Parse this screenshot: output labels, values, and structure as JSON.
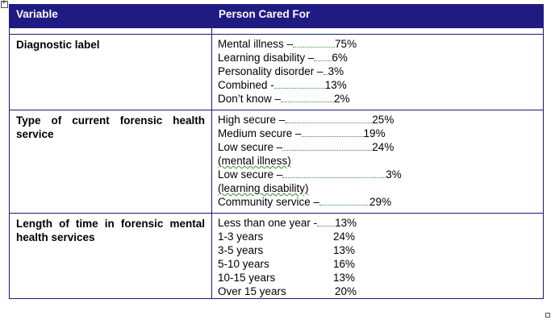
{
  "header": {
    "variable": "Variable",
    "person": "Person Cared For"
  },
  "rows": [
    {
      "variable": "Diagnostic label",
      "items": [
        {
          "label": "Mental illness –",
          "value": "75%"
        },
        {
          "label": "Learning disability –",
          "value": "6%"
        },
        {
          "label": "Personality disorder –",
          "value": "3%"
        },
        {
          "label": "Combined  -",
          "value": "13%"
        },
        {
          "label": "Don’t know –",
          "value": "2%"
        }
      ]
    },
    {
      "variable": "Type of current forensic health service",
      "items": [
        {
          "label": "High secure –",
          "value": "25%"
        },
        {
          "label": "Medium secure –",
          "value": "19%"
        },
        {
          "label": "Low secure –",
          "value": "24%"
        },
        {
          "label": "(mental illness)",
          "value": ""
        },
        {
          "label": "Low secure –",
          "value": "3%"
        },
        {
          "label": "(learning disability)",
          "value": ""
        },
        {
          "label": "Community service –",
          "value": "29%"
        }
      ]
    },
    {
      "variable": "Length of time in forensic mental health services",
      "items": [
        {
          "label": "Less than one year -",
          "value": "13%"
        },
        {
          "label": "1-3 years",
          "value": "24%"
        },
        {
          "label": "3-5 years",
          "value": "13%"
        },
        {
          "label": "5-10 years",
          "value": "16%"
        },
        {
          "label": "10-15 years",
          "value": "13%"
        },
        {
          "label": "Over 15 years",
          "value": "20%"
        }
      ]
    }
  ]
}
